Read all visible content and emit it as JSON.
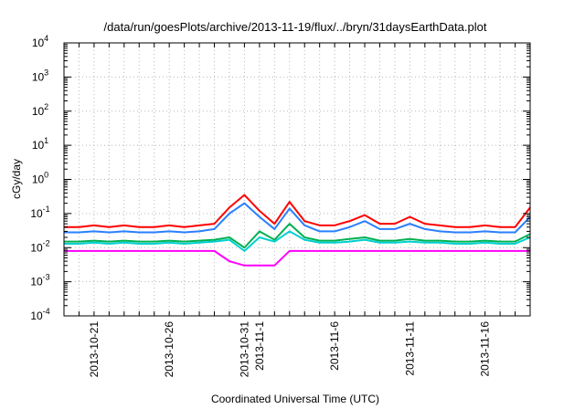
{
  "chart_data": {
    "type": "line",
    "title": "/data/run/goesPlots/archive/2013-11-19/flux/../bryn/31daysEarthData.plot",
    "xlabel": "Coordinated Universal Time (UTC)",
    "ylabel": "cGy/day",
    "y_scale": "log",
    "ylim": [
      0.0001,
      10000
    ],
    "xlim": [
      "2013-10-19",
      "2013-11-19"
    ],
    "grid": true,
    "legend": "none",
    "x_ticks": [
      "2013-10-21",
      "2013-10-26",
      "2013-10-31",
      "2013-11-1",
      "2013-11-6",
      "2013-11-11",
      "2013-11-16"
    ],
    "y_ticks": [
      {
        "base": "10",
        "exp": "-4"
      },
      {
        "base": "10",
        "exp": "-3"
      },
      {
        "base": "10",
        "exp": "-2"
      },
      {
        "base": "10",
        "exp": "-1"
      },
      {
        "base": "10",
        "exp": "0"
      },
      {
        "base": "10",
        "exp": "1"
      },
      {
        "base": "10",
        "exp": "2"
      },
      {
        "base": "10",
        "exp": "3"
      },
      {
        "base": "10",
        "exp": "4"
      }
    ],
    "x": [
      "2013-10-19",
      "2013-10-20",
      "2013-10-21",
      "2013-10-22",
      "2013-10-23",
      "2013-10-24",
      "2013-10-25",
      "2013-10-26",
      "2013-10-27",
      "2013-10-28",
      "2013-10-29",
      "2013-10-30",
      "2013-10-31",
      "2013-11-01",
      "2013-11-02",
      "2013-11-03",
      "2013-11-04",
      "2013-11-05",
      "2013-11-06",
      "2013-11-07",
      "2013-11-08",
      "2013-11-09",
      "2013-11-10",
      "2013-11-11",
      "2013-11-12",
      "2013-11-13",
      "2013-11-14",
      "2013-11-15",
      "2013-11-16",
      "2013-11-17",
      "2013-11-18",
      "2013-11-19"
    ],
    "series": [
      {
        "color": "#ff0000",
        "values": [
          0.04,
          0.04,
          0.045,
          0.04,
          0.045,
          0.04,
          0.04,
          0.045,
          0.04,
          0.045,
          0.05,
          0.15,
          0.35,
          0.12,
          0.05,
          0.22,
          0.06,
          0.045,
          0.045,
          0.06,
          0.09,
          0.05,
          0.05,
          0.08,
          0.05,
          0.045,
          0.04,
          0.04,
          0.045,
          0.04,
          0.04,
          0.15
        ]
      },
      {
        "color": "#2a7fff",
        "values": [
          0.028,
          0.028,
          0.03,
          0.028,
          0.03,
          0.028,
          0.028,
          0.03,
          0.028,
          0.03,
          0.035,
          0.1,
          0.2,
          0.08,
          0.035,
          0.14,
          0.045,
          0.03,
          0.03,
          0.04,
          0.06,
          0.035,
          0.035,
          0.05,
          0.035,
          0.03,
          0.028,
          0.028,
          0.03,
          0.028,
          0.028,
          0.08
        ]
      },
      {
        "color": "#00b050",
        "values": [
          0.015,
          0.015,
          0.016,
          0.015,
          0.016,
          0.015,
          0.015,
          0.016,
          0.015,
          0.016,
          0.017,
          0.02,
          0.01,
          0.03,
          0.017,
          0.05,
          0.02,
          0.016,
          0.016,
          0.018,
          0.02,
          0.016,
          0.016,
          0.018,
          0.016,
          0.016,
          0.015,
          0.015,
          0.016,
          0.015,
          0.015,
          0.025
        ]
      },
      {
        "color": "#00d0d0",
        "values": [
          0.013,
          0.013,
          0.014,
          0.013,
          0.014,
          0.013,
          0.013,
          0.014,
          0.013,
          0.014,
          0.015,
          0.017,
          0.008,
          0.02,
          0.015,
          0.03,
          0.017,
          0.014,
          0.014,
          0.015,
          0.017,
          0.014,
          0.014,
          0.015,
          0.014,
          0.014,
          0.013,
          0.013,
          0.014,
          0.013,
          0.013,
          0.02
        ]
      },
      {
        "color": "#ff00ff",
        "values": [
          0.008,
          0.008,
          0.008,
          0.008,
          0.008,
          0.008,
          0.008,
          0.008,
          0.008,
          0.008,
          0.008,
          0.004,
          0.003,
          0.003,
          0.003,
          0.008,
          0.008,
          0.008,
          0.008,
          0.008,
          0.008,
          0.008,
          0.008,
          0.008,
          0.008,
          0.008,
          0.008,
          0.008,
          0.008,
          0.008,
          0.008,
          0.008
        ]
      }
    ]
  }
}
